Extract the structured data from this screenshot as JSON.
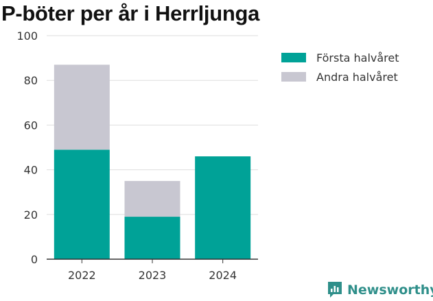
{
  "title": "P-böter per år i Herrljunga",
  "brand": "Newsworthy",
  "colors": {
    "first": "#00a297",
    "second": "#c8c7d1",
    "grid": "#dddddd",
    "axis": "#333333",
    "brand": "#2f8f8a"
  },
  "chart_data": {
    "type": "bar",
    "stacked": true,
    "title": "P-böter per år i Herrljunga",
    "categories": [
      "2022",
      "2023",
      "2024"
    ],
    "series": [
      {
        "name": "Första halvåret",
        "color": "#00a297",
        "values": [
          49,
          19,
          46
        ]
      },
      {
        "name": "Andra halvåret",
        "color": "#c8c7d1",
        "values": [
          38,
          16,
          0
        ]
      }
    ],
    "ylim": [
      0,
      100
    ],
    "yticks": [
      0,
      20,
      40,
      60,
      80,
      100
    ],
    "grid": true,
    "legend": "right"
  }
}
